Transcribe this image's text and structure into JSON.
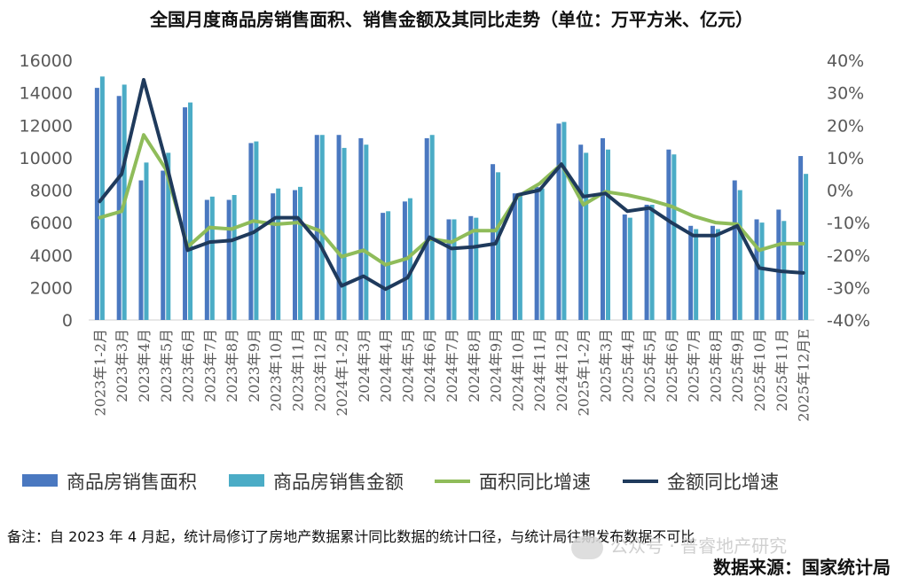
{
  "title": "全国月度商品房销售面积、销售金额及其同比走势（单位：万平方米、亿元）",
  "note": "备注：自 2023 年 4 月起，统计局修订了房地产数据累计同比数据的统计口径，与统计局往期发布数据不可比",
  "source": "数据来源：国家统计局",
  "watermark": "公众号 · 普睿地产研究",
  "colors": {
    "area_bar": "#4a78c0",
    "amount_bar": "#4bacc6",
    "area_yoy": "#8fbc5a",
    "amount_yoy": "#1f3a5c",
    "axis_text": "#595959"
  },
  "chart_data": {
    "type": "bar",
    "categories": [
      "2023年1-2月",
      "2023年3月",
      "2023年4月",
      "2023年5月",
      "2023年6月",
      "2023年7月",
      "2023年8月",
      "2023年9月",
      "2023年10月",
      "2023年11月",
      "2023年12月",
      "2024年1-2月",
      "2024年3月",
      "2024年4月",
      "2024年5月",
      "2024年6月",
      "2024年7月",
      "2024年8月",
      "2024年9月",
      "2024年10月",
      "2024年11月",
      "2024年12月",
      "2025年1-2月",
      "2025年3月",
      "2025年4月",
      "2025年5月",
      "2025年6月",
      "2025年7月",
      "2025年8月",
      "2025年9月",
      "2025年10月",
      "2025年11月",
      "2025年12月E"
    ],
    "y_left": {
      "min": 0,
      "max": 16000,
      "ticks": [
        "0",
        "2000",
        "4000",
        "6000",
        "8000",
        "10000",
        "12000",
        "14000",
        "16000"
      ]
    },
    "y_right": {
      "min": -40,
      "max": 40,
      "ticks": [
        "-40%",
        "-30%",
        "-20%",
        "-10%",
        "0%",
        "10%",
        "20%",
        "30%",
        "40%"
      ]
    },
    "legend_position": "bottom",
    "grid": false,
    "series": [
      {
        "name": "商品房销售面积",
        "kind": "bar",
        "axis": "left",
        "color": "#4a78c0",
        "values": [
          14300,
          13800,
          8600,
          9200,
          13100,
          7400,
          7400,
          10900,
          7800,
          8000,
          11400,
          11400,
          11200,
          6600,
          7300,
          11200,
          6200,
          6400,
          9600,
          7800,
          8200,
          12100,
          10800,
          11200,
          6500,
          7100,
          10500,
          5800,
          5800,
          8600,
          6200,
          6800,
          10100
        ]
      },
      {
        "name": "商品房销售金额",
        "kind": "bar",
        "axis": "left",
        "color": "#4bacc6",
        "values": [
          15000,
          14500,
          9700,
          10300,
          13400,
          7600,
          7700,
          11000,
          8100,
          8200,
          11400,
          10600,
          10800,
          6700,
          7500,
          11400,
          6200,
          6300,
          9100,
          7700,
          8100,
          12200,
          10300,
          10500,
          6300,
          7100,
          10200,
          5600,
          5600,
          8000,
          6000,
          6100,
          9000
        ]
      },
      {
        "name": "面积同比增速",
        "kind": "line",
        "axis": "right",
        "color": "#8fbc5a",
        "values": [
          -8.5,
          -6.5,
          17,
          6.5,
          -17.5,
          -11.5,
          -12,
          -9.5,
          -10.5,
          -10,
          -12.5,
          -20.5,
          -18.5,
          -23,
          -21,
          -15,
          -16,
          -12.5,
          -12.5,
          -2,
          2,
          8,
          -4.5,
          -0.5,
          -1.5,
          -3,
          -5,
          -8,
          -10,
          -10.5,
          -18.5,
          -16.5,
          -16.5
        ]
      },
      {
        "name": "金额同比增速",
        "kind": "line",
        "axis": "right",
        "color": "#1f3a5c",
        "values": [
          -3.5,
          5,
          34,
          9,
          -18.5,
          -16,
          -15.5,
          -13,
          -8.5,
          -8.5,
          -16.5,
          -29.5,
          -26.5,
          -30.5,
          -27,
          -14.5,
          -18,
          -17.5,
          -16.5,
          -1.5,
          0,
          8,
          -2,
          -1,
          -6.5,
          -5.5,
          -10,
          -14,
          -14,
          -11,
          -24,
          -25,
          -25.5
        ]
      }
    ]
  }
}
